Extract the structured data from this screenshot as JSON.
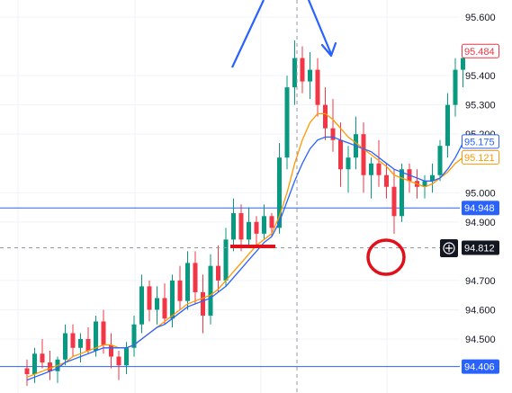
{
  "chart_data": {
    "type": "candlestick",
    "y_axis": {
      "ticks": [
        "95.600",
        "95.400",
        "95.300",
        "95.200",
        "95.000",
        "94.900",
        "94.700",
        "94.600",
        "94.500"
      ],
      "tick_values": [
        95.6,
        95.4,
        95.3,
        95.2,
        95.0,
        94.9,
        94.7,
        94.6,
        94.5
      ],
      "range": [
        94.35,
        95.66
      ]
    },
    "price_labels": [
      {
        "id": "ma-fast-last",
        "text": "95.484",
        "value": 95.484,
        "color": "#f23645",
        "style": "outline"
      },
      {
        "id": "ma-blue-last",
        "text": "95.175",
        "value": 95.175,
        "color": "#2962ff",
        "style": "outline"
      },
      {
        "id": "ma-orange-last",
        "text": "95.121",
        "value": 95.121,
        "color": "#ff9800",
        "style": "outline"
      },
      {
        "id": "hline-upper",
        "text": "94.948",
        "value": 94.948,
        "color": "#2962ff",
        "style": "filled"
      },
      {
        "id": "crosshair",
        "text": "94.812",
        "value": 94.812,
        "color": "#131722",
        "style": "filled"
      },
      {
        "id": "hline-lower",
        "text": "94.406",
        "value": 94.406,
        "color": "#2962ff",
        "style": "filled"
      }
    ],
    "horizontal_lines": [
      94.948,
      94.406
    ],
    "crosshair": {
      "price": 94.812,
      "candle_index": 49
    },
    "colors": {
      "up": "#089981",
      "down": "#f23645",
      "ma_blue": "#2962ff",
      "ma_orange": "#ff9800",
      "annotation_red": "#e0111b",
      "annotation_blue": "#2962ff"
    },
    "candles": [
      [
        94.4,
        94.43,
        94.34,
        94.38
      ],
      [
        94.38,
        94.47,
        94.35,
        94.45
      ],
      [
        94.45,
        94.5,
        94.4,
        94.42
      ],
      [
        94.42,
        94.46,
        94.36,
        94.39
      ],
      [
        94.39,
        94.44,
        94.35,
        94.43
      ],
      [
        94.43,
        94.55,
        94.41,
        94.52
      ],
      [
        94.52,
        94.55,
        94.44,
        94.47
      ],
      [
        94.47,
        94.52,
        94.42,
        94.5
      ],
      [
        94.5,
        94.54,
        94.45,
        94.46
      ],
      [
        94.46,
        94.58,
        94.44,
        94.56
      ],
      [
        94.56,
        94.6,
        94.45,
        94.48
      ],
      [
        94.48,
        94.52,
        94.4,
        94.44
      ],
      [
        94.44,
        94.46,
        94.36,
        94.41
      ],
      [
        94.41,
        94.49,
        94.38,
        94.47
      ],
      [
        94.47,
        94.58,
        94.44,
        94.55
      ],
      [
        94.55,
        94.72,
        94.52,
        94.68
      ],
      [
        94.68,
        94.7,
        94.56,
        94.6
      ],
      [
        94.6,
        94.68,
        94.55,
        94.64
      ],
      [
        94.64,
        94.69,
        94.55,
        94.57
      ],
      [
        94.57,
        94.72,
        94.54,
        94.7
      ],
      [
        94.7,
        94.75,
        94.6,
        94.63
      ],
      [
        94.63,
        94.8,
        94.6,
        94.76
      ],
      [
        94.76,
        94.8,
        94.62,
        94.66
      ],
      [
        94.66,
        94.72,
        94.52,
        94.58
      ],
      [
        94.58,
        94.79,
        94.55,
        94.75
      ],
      [
        94.75,
        94.82,
        94.66,
        94.7
      ],
      [
        94.7,
        94.88,
        94.68,
        94.84
      ],
      [
        94.84,
        94.98,
        94.8,
        94.93
      ],
      [
        94.93,
        94.96,
        94.8,
        94.84
      ],
      [
        94.84,
        94.95,
        94.82,
        94.9
      ],
      [
        94.9,
        94.92,
        94.82,
        94.86
      ],
      [
        94.86,
        94.96,
        94.84,
        94.92
      ],
      [
        94.92,
        94.93,
        94.85,
        94.88
      ],
      [
        94.88,
        95.17,
        94.86,
        95.12
      ],
      [
        95.12,
        95.4,
        95.08,
        95.36
      ],
      [
        95.36,
        95.52,
        95.3,
        95.46
      ],
      [
        95.46,
        95.5,
        95.34,
        95.38
      ],
      [
        95.38,
        95.48,
        95.32,
        95.42
      ],
      [
        95.42,
        95.46,
        95.26,
        95.3
      ],
      [
        95.3,
        95.36,
        95.18,
        95.22
      ],
      [
        95.22,
        95.32,
        95.14,
        95.18
      ],
      [
        95.18,
        95.24,
        95.02,
        95.08
      ],
      [
        95.08,
        95.16,
        95.0,
        95.12
      ],
      [
        95.12,
        95.26,
        95.08,
        95.2
      ],
      [
        95.2,
        95.24,
        95.0,
        95.06
      ],
      [
        95.06,
        95.12,
        94.98,
        95.1
      ],
      [
        95.1,
        95.18,
        95.02,
        95.06
      ],
      [
        95.06,
        95.1,
        94.98,
        95.02
      ],
      [
        95.02,
        95.08,
        94.86,
        94.92
      ],
      [
        94.92,
        95.1,
        94.9,
        95.08
      ],
      [
        95.08,
        95.1,
        95.0,
        95.04
      ],
      [
        95.04,
        95.08,
        94.98,
        95.02
      ],
      [
        95.02,
        95.06,
        94.98,
        95.04
      ],
      [
        95.04,
        95.1,
        95.0,
        95.06
      ],
      [
        95.06,
        95.18,
        95.04,
        95.16
      ],
      [
        95.16,
        95.34,
        95.12,
        95.3
      ],
      [
        95.3,
        95.46,
        95.26,
        95.42
      ],
      [
        95.42,
        95.5,
        95.36,
        95.46
      ]
    ],
    "ma_blue": [
      94.36,
      94.37,
      94.38,
      94.39,
      94.4,
      94.42,
      94.43,
      94.44,
      94.45,
      94.46,
      94.47,
      94.47,
      94.47,
      94.47,
      94.48,
      94.5,
      94.52,
      94.54,
      94.55,
      94.57,
      94.59,
      94.61,
      94.62,
      94.63,
      94.64,
      94.66,
      94.68,
      94.71,
      94.74,
      94.77,
      94.8,
      94.83,
      94.85,
      94.9,
      94.97,
      95.04,
      95.1,
      95.15,
      95.18,
      95.19,
      95.19,
      95.18,
      95.17,
      95.16,
      95.15,
      95.14,
      95.12,
      95.1,
      95.08,
      95.07,
      95.06,
      95.05,
      95.04,
      95.04,
      95.05,
      95.08,
      95.12,
      95.17
    ],
    "ma_orange": [
      94.37,
      94.38,
      94.39,
      94.4,
      94.41,
      94.42,
      94.44,
      94.45,
      94.46,
      94.47,
      94.48,
      94.48,
      94.47,
      94.47,
      94.48,
      94.5,
      94.52,
      94.54,
      94.56,
      94.58,
      94.6,
      94.62,
      94.63,
      94.64,
      94.65,
      94.67,
      94.7,
      94.73,
      94.76,
      94.79,
      94.82,
      94.84,
      94.86,
      94.92,
      95.0,
      95.1,
      95.18,
      95.24,
      95.27,
      95.27,
      95.25,
      95.22,
      95.19,
      95.17,
      95.15,
      95.13,
      95.11,
      95.09,
      95.06,
      95.05,
      95.04,
      95.03,
      95.02,
      95.03,
      95.05,
      95.07,
      95.1,
      95.12
    ]
  }
}
